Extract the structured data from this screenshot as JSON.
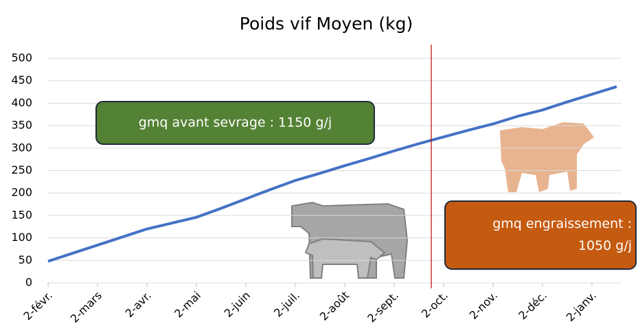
{
  "chart_data": {
    "type": "line",
    "title": "Poids vif Moyen (kg)",
    "categories": [
      "2-févr.",
      null,
      "2-mars",
      null,
      "2-avr.",
      null,
      "2-mai",
      null,
      "2-juin",
      null,
      "2-juil.",
      null,
      "2-août",
      null,
      "2-sept.",
      null,
      "2-oct.",
      null,
      "2-nov.",
      null,
      "2-déc.",
      null,
      "2-janv.",
      null
    ],
    "values": [
      48,
      66,
      84,
      102,
      120,
      133,
      146,
      166,
      187,
      208,
      228,
      244,
      261,
      277,
      294,
      310,
      325,
      340,
      354,
      371,
      385,
      403,
      420,
      437
    ],
    "color": "#4472c4",
    "ylim": [
      0,
      500
    ],
    "yticks": [
      0,
      50,
      100,
      150,
      200,
      250,
      300,
      350,
      400,
      450,
      500
    ],
    "grid": true,
    "vline": {
      "x": 15.5,
      "color": "#c00000"
    },
    "annotations": [
      {
        "lines": [
          "gmq avant sevrage : 1150 g/j"
        ],
        "color": "#548235"
      },
      {
        "lines": [
          "gmq engraissement :",
          "1050 g/j"
        ],
        "color": "#c55a11"
      }
    ]
  }
}
